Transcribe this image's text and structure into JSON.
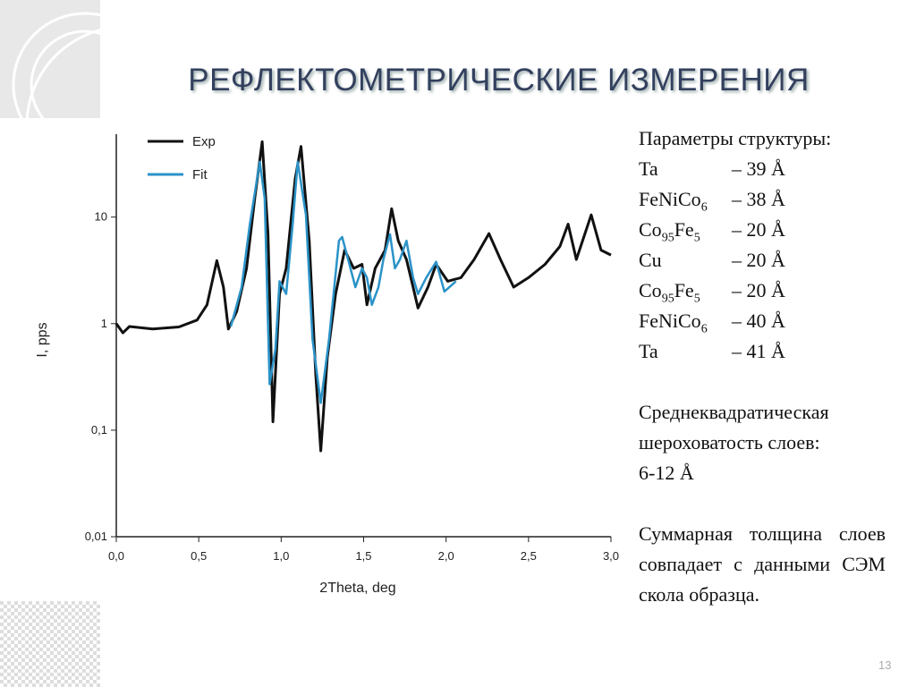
{
  "title": "РЕФЛЕКТОМЕТРИЧЕСКИЕ ИЗМЕРЕНИЯ",
  "slide_number": "13",
  "parameters": {
    "heading": "Параметры структуры:",
    "layers": [
      {
        "name": [
          "Ta"
        ],
        "value": "– 39 Å"
      },
      {
        "name": [
          "FeNiCo",
          "6"
        ],
        "value": "– 38 Å"
      },
      {
        "name": [
          "Co",
          "95",
          "Fe",
          "5"
        ],
        "value": "– 20 Å"
      },
      {
        "name": [
          "Cu"
        ],
        "value": "– 20 Å"
      },
      {
        "name": [
          "Co",
          "95",
          "Fe",
          "5"
        ],
        "value": "– 20 Å"
      },
      {
        "name": [
          "FeNiCo",
          "6"
        ],
        "value": "– 40 Å"
      },
      {
        "name": [
          "Ta"
        ],
        "value": "– 41 Å"
      }
    ]
  },
  "roughness": [
    "Среднеквадратическая шероховатость слоев:",
    "6-12 Å"
  ],
  "conclusion": "Суммарная толщина слоев совпадает с данными СЭМ скола образца.",
  "chart_data": {
    "type": "line",
    "x_label": "2Theta, deg",
    "y_label": "I, pps",
    "yscale": "log",
    "legend": "upper left",
    "xlim": [
      0,
      3
    ],
    "ylim": [
      0.01,
      60
    ],
    "xticks": [
      {
        "value": 0,
        "label": "0,0"
      },
      {
        "value": 0.5,
        "label": "0,5"
      },
      {
        "value": 1,
        "label": "1,0"
      },
      {
        "value": 1.5,
        "label": "1,5"
      },
      {
        "value": 2,
        "label": "2,0"
      },
      {
        "value": 2.5,
        "label": "2,5"
      },
      {
        "value": 3,
        "label": "3,0"
      }
    ],
    "yticks": [
      {
        "value": 0.01,
        "label": "0,01"
      },
      {
        "value": 0.1,
        "label": "0,1"
      },
      1,
      10
    ],
    "series": [
      {
        "name": "Exp",
        "color": "#111111",
        "x": [
          0,
          0.04,
          0.08,
          0.22,
          0.38,
          0.49,
          0.55,
          0.61,
          0.65,
          0.68,
          0.73,
          0.79,
          0.84,
          0.885,
          0.92,
          0.95,
          0.99,
          1.03,
          1.085,
          1.12,
          1.17,
          1.21,
          1.24,
          1.28,
          1.33,
          1.385,
          1.44,
          1.49,
          1.52,
          1.57,
          1.63,
          1.67,
          1.71,
          1.76,
          1.8,
          1.83,
          1.89,
          1.94,
          2.01,
          2.09,
          2.17,
          2.26,
          2.33,
          2.41,
          2.5,
          2.6,
          2.69,
          2.74,
          2.79,
          2.88,
          2.94,
          3.0
        ],
        "values": [
          1.0,
          0.82,
          0.94,
          0.89,
          0.93,
          1.08,
          1.5,
          3.9,
          2.2,
          0.89,
          1.3,
          3.3,
          15,
          51,
          7,
          0.12,
          1.9,
          3.3,
          23,
          46,
          6,
          0.33,
          0.064,
          0.48,
          1.9,
          4.9,
          3.3,
          3.6,
          1.5,
          3.3,
          4.9,
          12,
          6,
          4,
          2.2,
          1.4,
          2.2,
          3.6,
          2.5,
          2.7,
          4,
          7,
          4,
          2.2,
          2.7,
          3.6,
          5.3,
          8.6,
          4,
          10.5,
          4.9,
          4.4
        ]
      },
      {
        "name": "Fit",
        "color": "#2b93c8",
        "x": [
          0.695,
          0.76,
          0.81,
          0.87,
          0.9,
          0.93,
          0.965,
          0.99,
          1.03,
          1.07,
          1.1,
          1.15,
          1.19,
          1.24,
          1.29,
          1.35,
          1.37,
          1.42,
          1.45,
          1.49,
          1.52,
          1.55,
          1.59,
          1.62,
          1.66,
          1.69,
          1.72,
          1.76,
          1.8,
          1.83,
          1.88,
          1.94,
          1.99,
          2.06
        ],
        "values": [
          0.94,
          2.2,
          8.6,
          33,
          15,
          0.27,
          0.58,
          2.5,
          1.9,
          8.6,
          33,
          10.5,
          0.71,
          0.18,
          0.71,
          6,
          6.5,
          3.3,
          2.2,
          3.3,
          2.7,
          1.5,
          2.2,
          4,
          6.9,
          3.3,
          4,
          6,
          2.7,
          1.9,
          2.7,
          3.8,
          2,
          2.5
        ]
      }
    ]
  }
}
